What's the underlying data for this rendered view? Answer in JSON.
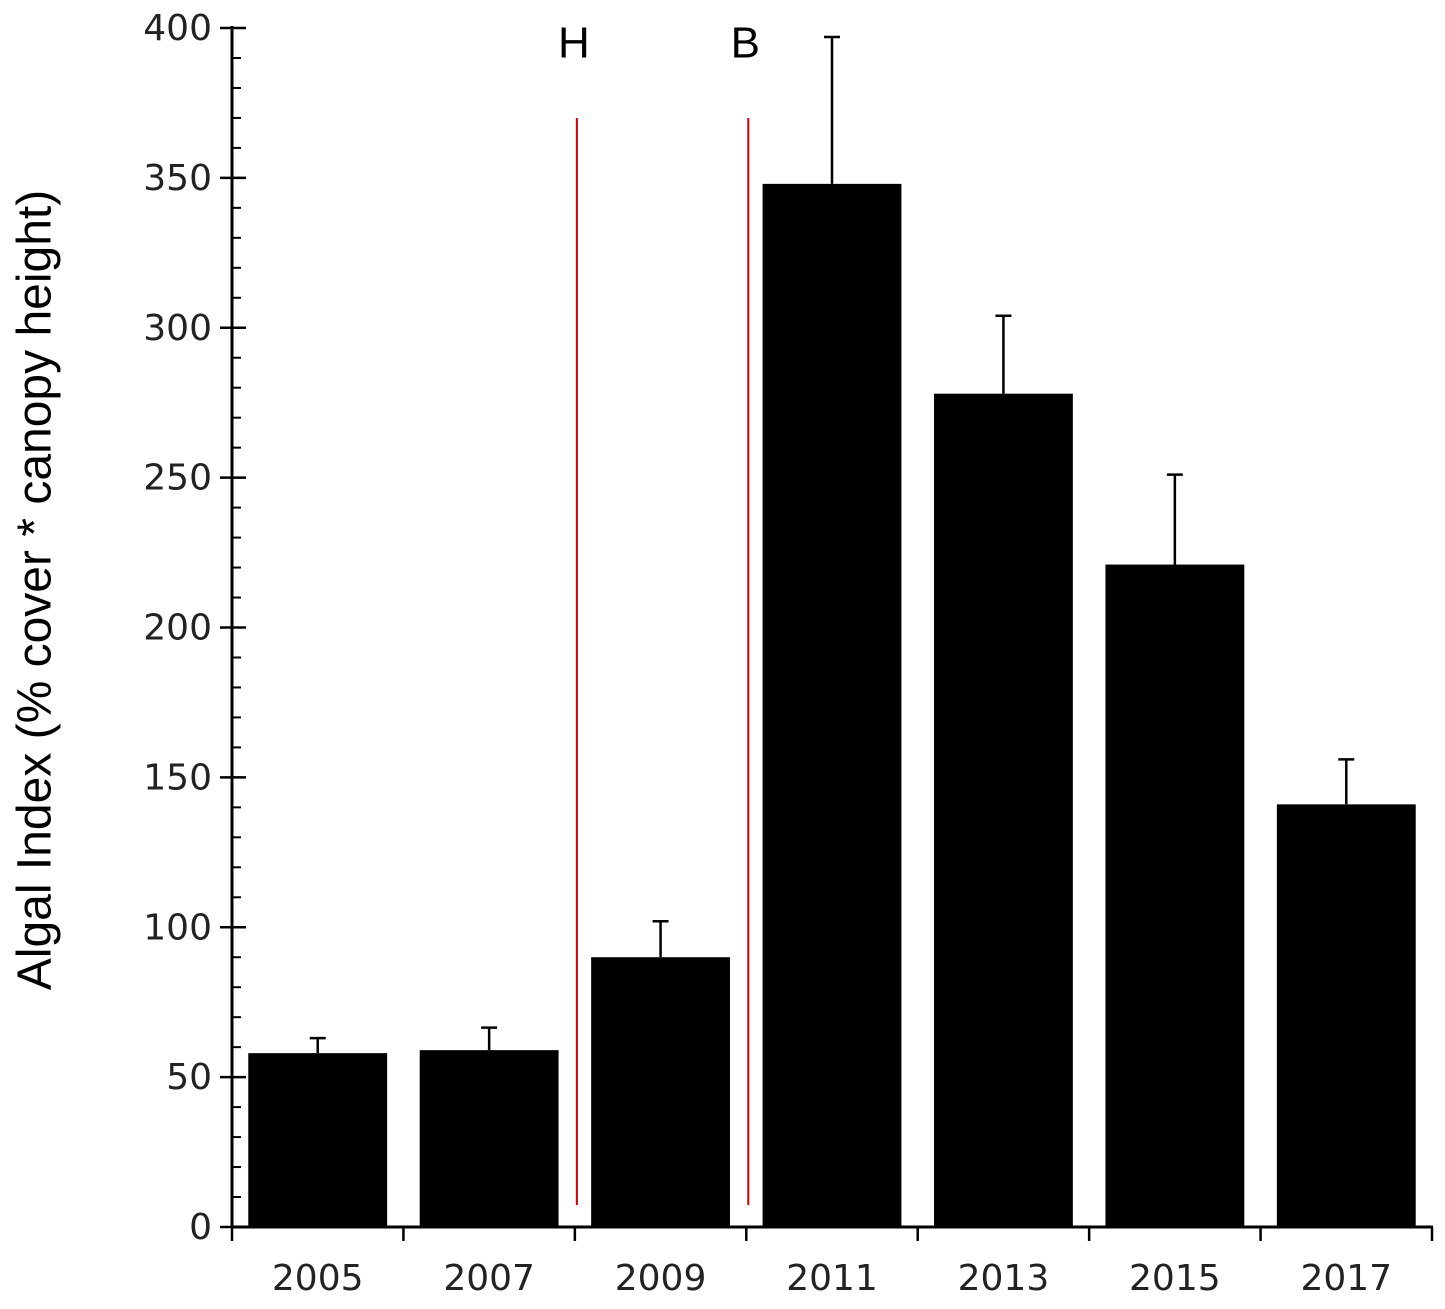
{
  "chart_data": {
    "type": "bar",
    "y_label": "Algal Index  (% cover * canopy height)",
    "categories": [
      "2005",
      "2007",
      "2009",
      "2011",
      "2013",
      "2015",
      "2017"
    ],
    "values": [
      58,
      59,
      90,
      348,
      278,
      221,
      141
    ],
    "errors": [
      5,
      7.5,
      12,
      49,
      26,
      30,
      15
    ],
    "color": "#000000",
    "ylim": [
      0,
      400
    ],
    "yticks": [
      0,
      50,
      100,
      150,
      200,
      250,
      300,
      350,
      400
    ],
    "yminor_ticks": [
      0,
      10,
      20,
      30,
      40,
      50,
      60,
      70,
      80,
      90,
      100,
      110,
      120,
      130,
      140,
      150,
      160,
      170,
      180,
      190,
      200,
      210,
      220,
      230,
      240,
      250,
      260,
      270,
      280,
      290,
      300,
      310,
      320,
      330,
      340,
      350,
      360,
      370,
      380,
      390,
      400
    ],
    "annotations": [
      {
        "text": "H",
        "x": 2008,
        "color": "#d00000"
      },
      {
        "text": "B",
        "x": 2010,
        "color": "#d00000"
      }
    ]
  }
}
